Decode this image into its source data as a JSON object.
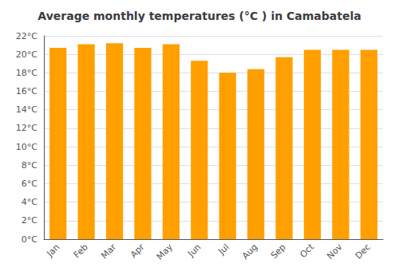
{
  "chart_data": {
    "type": "bar",
    "title": "Average monthly temperatures (°C ) in Camabatela",
    "categories": [
      "Jan",
      "Feb",
      "Mar",
      "Apr",
      "May",
      "Jun",
      "Jul",
      "Aug",
      "Sep",
      "Oct",
      "Nov",
      "Dec"
    ],
    "values": [
      20.7,
      21.1,
      21.2,
      20.7,
      21.1,
      19.3,
      18.0,
      18.4,
      19.7,
      20.5,
      20.5,
      20.5
    ],
    "color": "#FFA000",
    "ylim": [
      0,
      22
    ],
    "yticks": [
      {
        "value": 0,
        "label": "0°C"
      },
      {
        "value": 2,
        "label": "2°C"
      },
      {
        "value": 4,
        "label": "4°C"
      },
      {
        "value": 6,
        "label": "6°C"
      },
      {
        "value": 8,
        "label": "8°C"
      },
      {
        "value": 10,
        "label": "10°C"
      },
      {
        "value": 12,
        "label": "12°C"
      },
      {
        "value": 14,
        "label": "14°C"
      },
      {
        "value": 16,
        "label": "16°C"
      },
      {
        "value": 18,
        "label": "18°C"
      },
      {
        "value": 20,
        "label": "20°C"
      },
      {
        "value": 22,
        "label": "22°C"
      }
    ],
    "grid": true
  }
}
